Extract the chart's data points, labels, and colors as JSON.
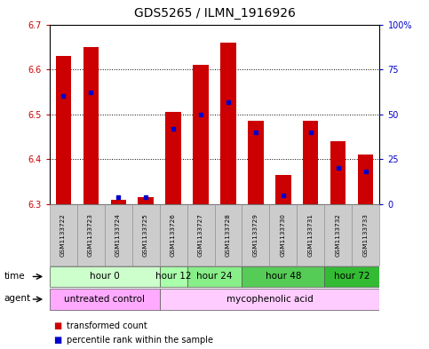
{
  "title": "GDS5265 / ILMN_1916926",
  "samples": [
    "GSM1133722",
    "GSM1133723",
    "GSM1133724",
    "GSM1133725",
    "GSM1133726",
    "GSM1133727",
    "GSM1133728",
    "GSM1133729",
    "GSM1133730",
    "GSM1133731",
    "GSM1133732",
    "GSM1133733"
  ],
  "transformed_count": [
    6.63,
    6.65,
    6.31,
    6.315,
    6.505,
    6.61,
    6.66,
    6.485,
    6.365,
    6.485,
    6.44,
    6.41
  ],
  "percentile_rank": [
    60,
    62,
    4,
    4,
    42,
    50,
    57,
    40,
    5,
    40,
    20,
    18
  ],
  "ylim_left": [
    6.3,
    6.7
  ],
  "ylim_right": [
    0,
    100
  ],
  "yticks_left": [
    6.3,
    6.4,
    6.5,
    6.6,
    6.7
  ],
  "yticks_right": [
    0,
    25,
    50,
    75,
    100
  ],
  "ytick_labels_right": [
    "0",
    "25",
    "50",
    "75",
    "100%"
  ],
  "bar_color_red": "#cc0000",
  "bar_color_blue": "#0000cc",
  "bar_bottom": 6.3,
  "time_groups": [
    {
      "label": "hour 0",
      "start": 0,
      "end": 3,
      "color": "#ccffcc"
    },
    {
      "label": "hour 12",
      "start": 4,
      "end": 4,
      "color": "#aaffaa"
    },
    {
      "label": "hour 24",
      "start": 5,
      "end": 6,
      "color": "#88ee88"
    },
    {
      "label": "hour 48",
      "start": 7,
      "end": 9,
      "color": "#55cc55"
    },
    {
      "label": "hour 72",
      "start": 10,
      "end": 11,
      "color": "#33bb33"
    }
  ],
  "agent_groups": [
    {
      "label": "untreated control",
      "start": 0,
      "end": 3,
      "color": "#ffaaff"
    },
    {
      "label": "mycophenolic acid",
      "start": 4,
      "end": 11,
      "color": "#ffccff"
    }
  ],
  "legend_red": "transformed count",
  "legend_blue": "percentile rank within the sample",
  "bar_width": 0.55,
  "plot_bg": "#ffffff",
  "grid_color": "#000000",
  "tick_color_left": "#cc0000",
  "tick_color_right": "#0000cc",
  "sample_row_color": "#cccccc",
  "title_fontsize": 10,
  "tick_fontsize": 7,
  "label_fontsize": 7.5,
  "row_label_fontsize": 7.5,
  "sample_fontsize": 5.2,
  "legend_fontsize": 7
}
